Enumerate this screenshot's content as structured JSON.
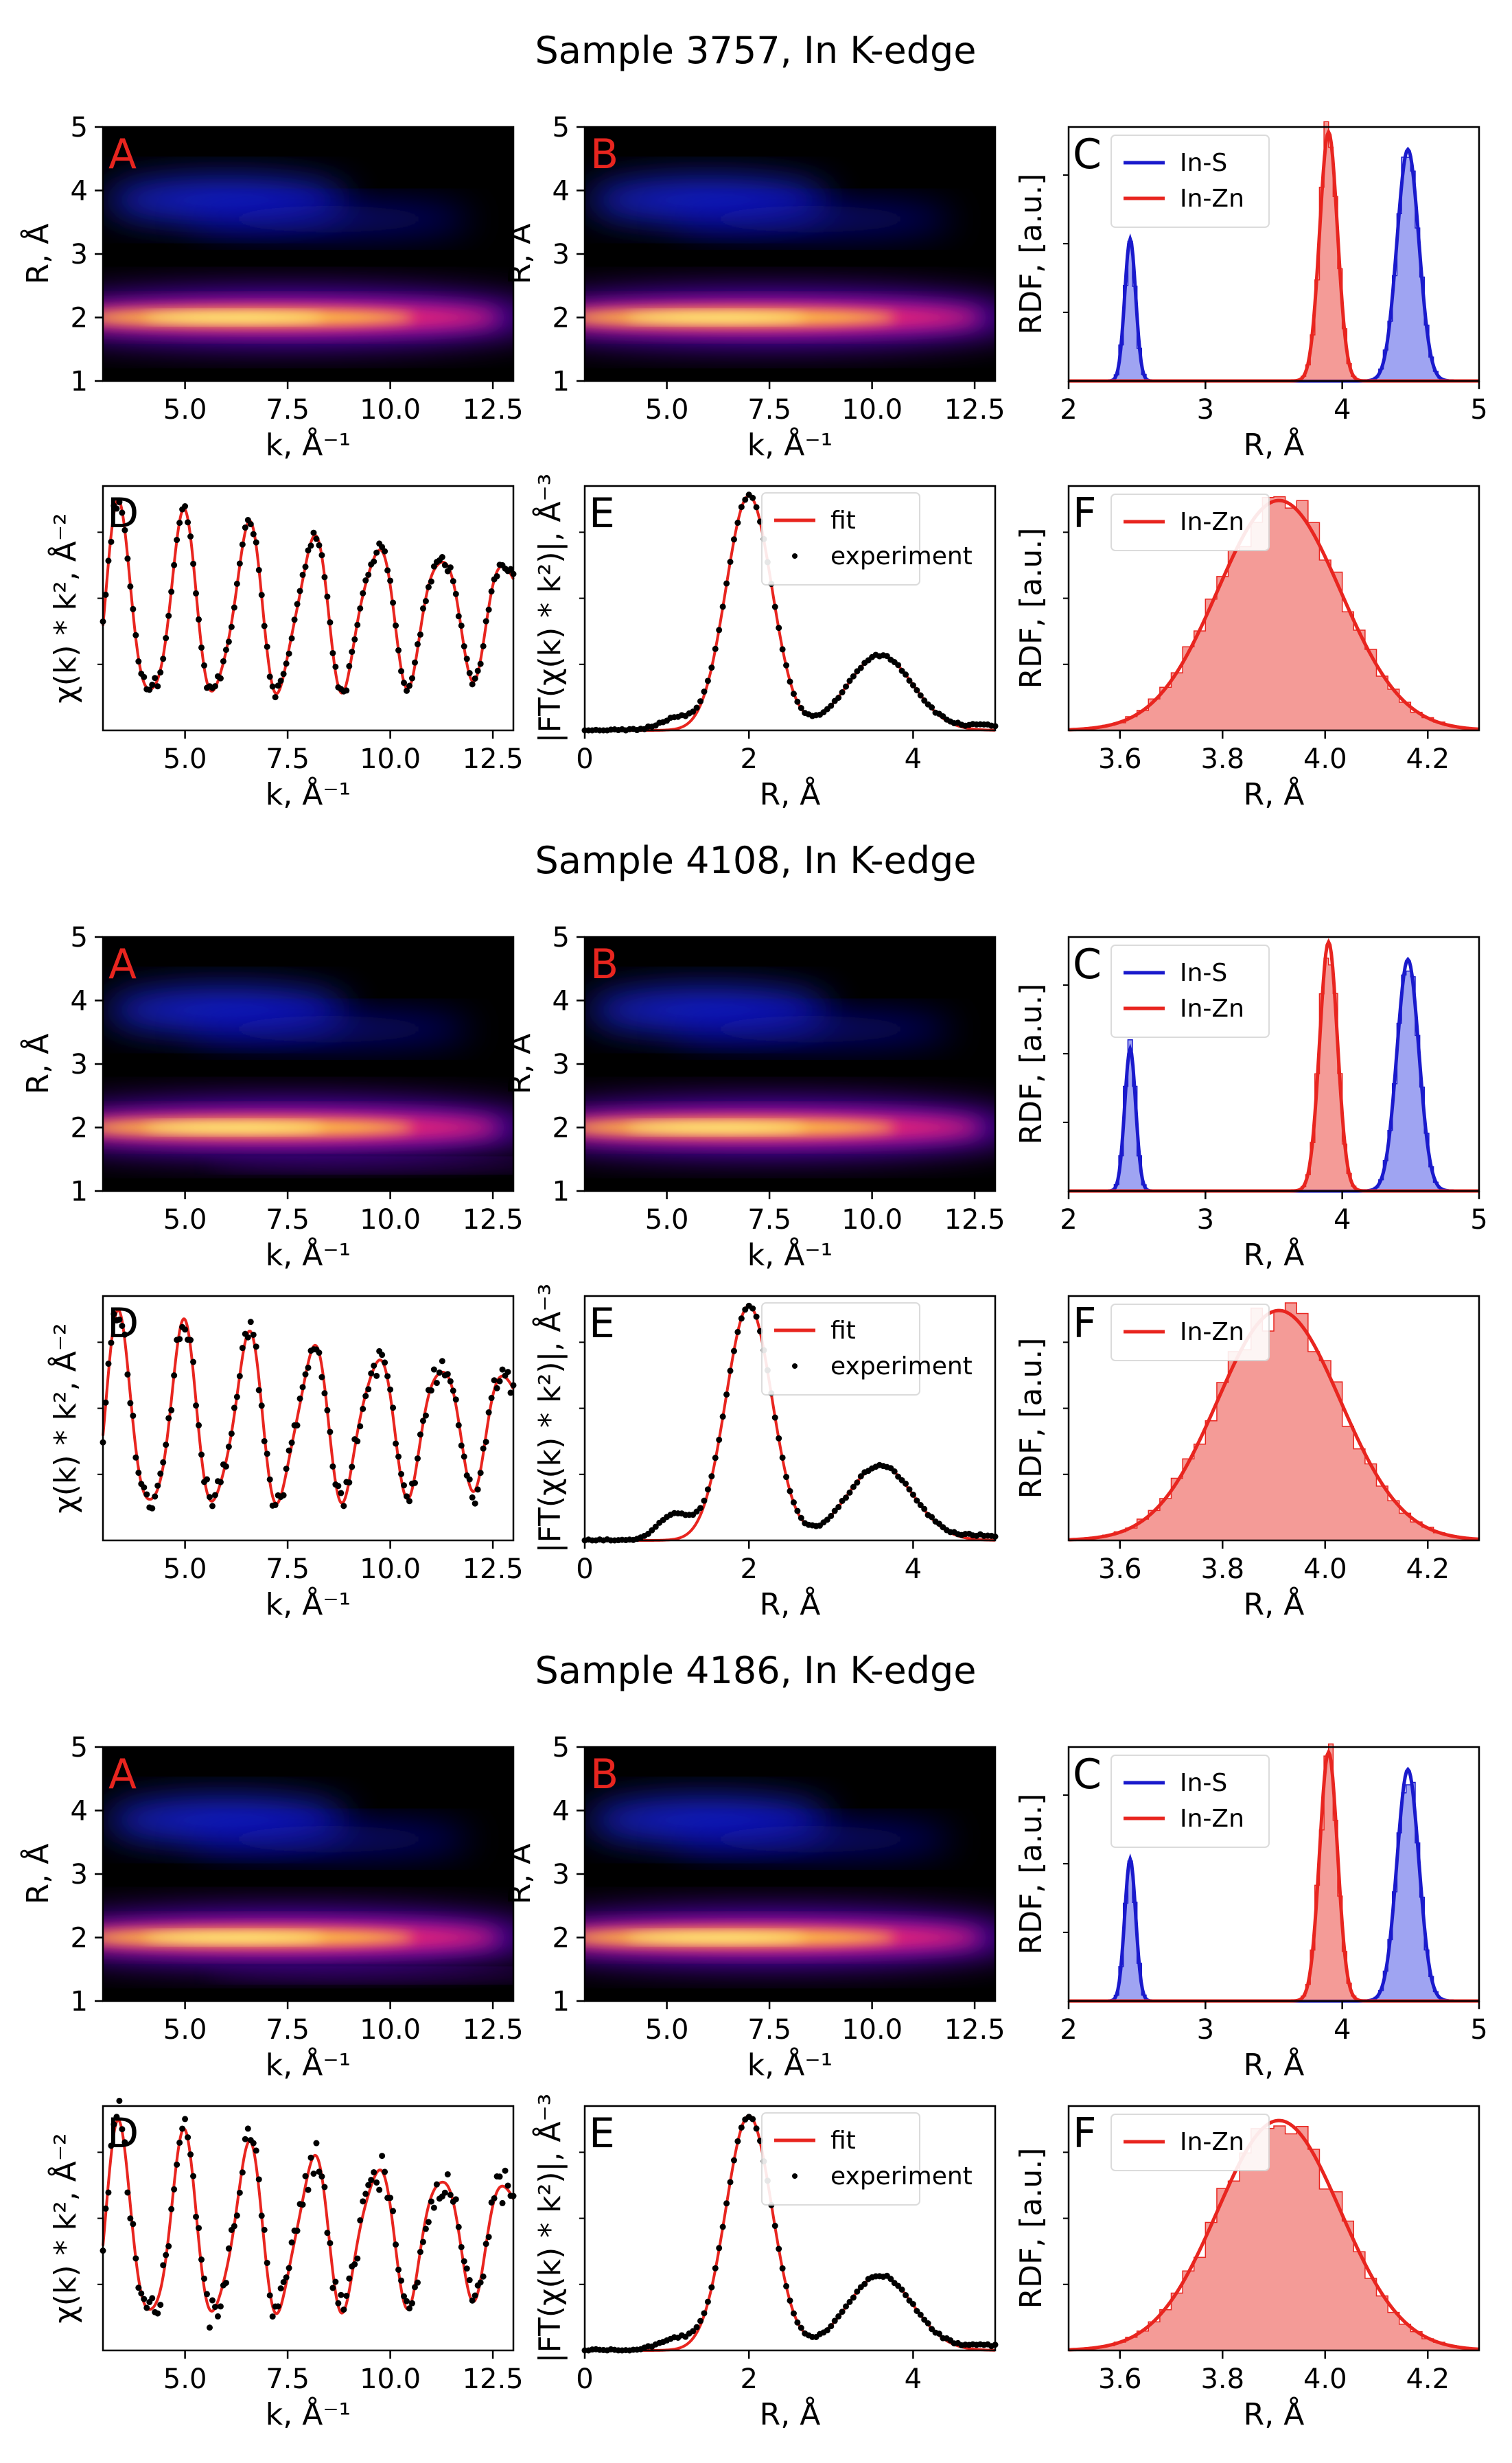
{
  "figure": {
    "samples": [
      {
        "title": "Sample 3757, In K-edge",
        "id": "3757"
      },
      {
        "title": "Sample 4108, In K-edge",
        "id": "4108"
      },
      {
        "title": "Sample 4186, In K-edge",
        "id": "4186"
      }
    ]
  },
  "colors": {
    "red": "#e8251f",
    "blue": "#1a1acc",
    "red_fill": "#f07a74",
    "blue_fill": "#7f86ee",
    "black": "#000000"
  },
  "chart_data": [
    {
      "panel": "A",
      "type": "heatmap",
      "title": "",
      "xlabel": "k, Å⁻¹",
      "ylabel": "R, Å",
      "xlim": [
        3,
        13
      ],
      "ylim": [
        1,
        5
      ],
      "xticks": [
        "5.0",
        "7.5",
        "10.0",
        "12.5"
      ],
      "yticks": [
        "1",
        "2",
        "3",
        "4",
        "5"
      ],
      "colormap": "gnuplot2",
      "features": [
        {
          "name": "first shell",
          "k_center": 6.5,
          "R_center": 2.0,
          "intensity": 1.0
        },
        {
          "name": "second shell",
          "k_center": 6.5,
          "R_center": 3.8,
          "intensity": 0.45
        }
      ]
    },
    {
      "panel": "B",
      "type": "heatmap",
      "title": "",
      "xlabel": "k, Å⁻¹",
      "ylabel": "R, Å",
      "xlim": [
        3,
        13
      ],
      "ylim": [
        1,
        5
      ],
      "xticks": [
        "5.0",
        "7.5",
        "10.0",
        "12.5"
      ],
      "yticks": [
        "1",
        "2",
        "3",
        "4",
        "5"
      ],
      "colormap": "gnuplot2"
    },
    {
      "panel": "C",
      "type": "bar",
      "xlabel": "R, Å",
      "ylabel": "RDF, [a.u.]",
      "xlim": [
        2,
        5
      ],
      "xticks": [
        "2",
        "3",
        "4",
        "5"
      ],
      "legend": "top-left",
      "series": [
        {
          "name": "In-S",
          "peaks": [
            {
              "center": 2.45,
              "width": 0.04,
              "height": 0.57
            },
            {
              "center": 4.48,
              "width": 0.08,
              "height": 0.93
            }
          ]
        },
        {
          "name": "In-Zn",
          "peaks": [
            {
              "center": 3.9,
              "width": 0.065,
              "height": 1.0
            }
          ]
        }
      ]
    },
    {
      "panel": "D",
      "type": "line",
      "xlabel": "k, Å⁻¹",
      "ylabel": "χ(k) * k², Å⁻²",
      "xlim": [
        3,
        13
      ],
      "xticks": [
        "5.0",
        "7.5",
        "10.0",
        "12.5"
      ],
      "series": [
        {
          "name": "fit"
        },
        {
          "name": "experiment"
        }
      ]
    },
    {
      "panel": "E",
      "type": "line",
      "xlabel": "R, Å",
      "ylabel": "|FT(χ(k) * k²)|, Å⁻³",
      "xlim": [
        0,
        5
      ],
      "xticks": [
        "0",
        "2",
        "4"
      ],
      "legend": "top-right",
      "series": [
        {
          "name": "fit",
          "peaks": [
            {
              "center": 2.0,
              "width": 0.28,
              "height": 1.0
            },
            {
              "center": 3.6,
              "width": 0.4,
              "height": 0.32
            }
          ]
        },
        {
          "name": "experiment"
        }
      ]
    },
    {
      "panel": "F",
      "type": "bar",
      "xlabel": "R, Å",
      "ylabel": "RDF, [a.u.]",
      "xlim": [
        3.5,
        4.3
      ],
      "xticks": [
        "3.6",
        "3.8",
        "4.0",
        "4.2"
      ],
      "legend": "top-left",
      "series": [
        {
          "name": "In-Zn",
          "center": 3.91,
          "width": 0.12,
          "height": 0.96
        }
      ]
    }
  ]
}
